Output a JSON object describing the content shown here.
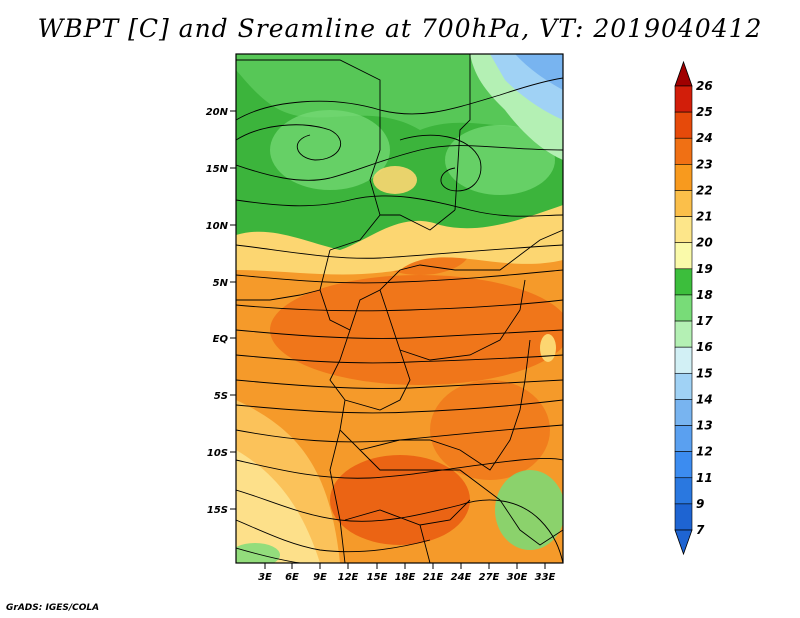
{
  "title": "WBPT [C] and Sreamline at 700hPa, VT: 2019040412",
  "credit": "GrADS: IGES/COLA",
  "map": {
    "lat_labels": [
      "20N",
      "15N",
      "10N",
      "5N",
      "EQ",
      "5S",
      "10S",
      "15S"
    ],
    "lon_labels": [
      "3E",
      "6E",
      "9E",
      "12E",
      "15E",
      "18E",
      "21E",
      "24E",
      "27E",
      "30E",
      "33E"
    ]
  },
  "colorbar": {
    "levels": [
      "7",
      "9",
      "11",
      "12",
      "13",
      "14",
      "15",
      "16",
      "17",
      "18",
      "19",
      "20",
      "21",
      "22",
      "23",
      "24",
      "25",
      "26"
    ],
    "colors": [
      "#1e64d2",
      "#2a78e0",
      "#3c8cf0",
      "#5aa0f0",
      "#78b4f0",
      "#a0d2f5",
      "#d2f0f5",
      "#b4f0b4",
      "#78dc78",
      "#3cbe3c",
      "#fafaaa",
      "#fde68a",
      "#fbbf4a",
      "#f89a1e",
      "#f07014",
      "#e64a0a",
      "#d21e0a",
      "#a00000"
    ]
  }
}
